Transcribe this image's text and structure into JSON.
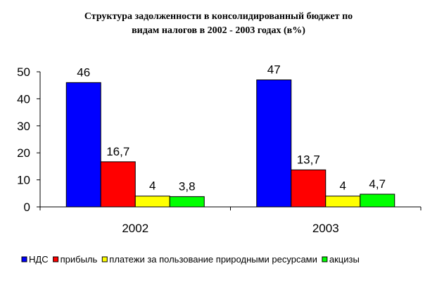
{
  "chart_data": {
    "type": "bar",
    "title_line1": "Структура задолженности в консолидированный бюджет по",
    "title_line2": "видам налогов в 2002 - 2003 годах (в%)",
    "categories": [
      "2002",
      "2003"
    ],
    "series": [
      {
        "name": "НДС",
        "color": "#0000FF",
        "values": [
          46,
          47
        ],
        "labels": [
          "46",
          "47"
        ]
      },
      {
        "name": "прибыль",
        "color": "#FF0000",
        "values": [
          16.7,
          13.7
        ],
        "labels": [
          "16,7",
          "13,7"
        ]
      },
      {
        "name": "платежи за пользование природными ресурсами",
        "color": "#FFFF00",
        "values": [
          4,
          4
        ],
        "labels": [
          "4",
          "4"
        ]
      },
      {
        "name": "акцизы",
        "color": "#00FF00",
        "values": [
          3.8,
          4.7
        ],
        "labels": [
          "3,8",
          "4,7"
        ]
      }
    ],
    "ylim": [
      0,
      50
    ],
    "yticks": [
      0,
      10,
      20,
      30,
      40,
      50
    ],
    "grid": false,
    "legend_position": "bottom"
  }
}
